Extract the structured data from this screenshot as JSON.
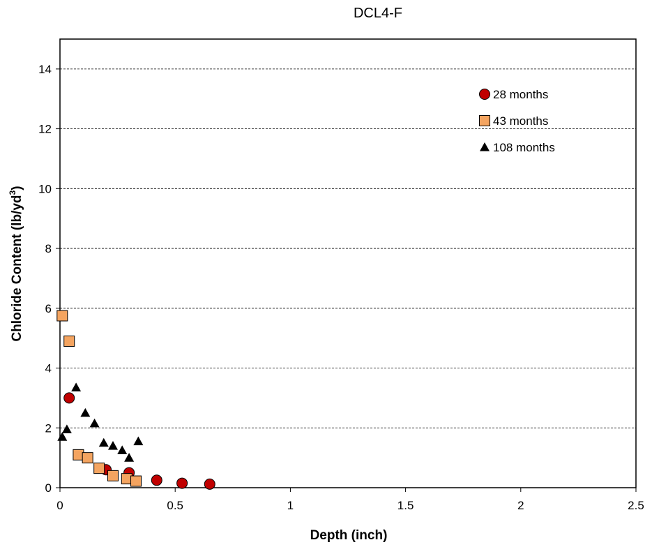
{
  "chart_data": {
    "type": "scatter",
    "title": "DCL4-F",
    "xlabel": "Depth (inch)",
    "ylabel_main": "Chloride Content (lb/yd",
    "ylabel_sup": "3",
    "ylabel_end": ")",
    "xlim": [
      0,
      2.5
    ],
    "ylim": [
      0,
      15
    ],
    "x_ticks": [
      "0",
      "0.5",
      "1",
      "1.5",
      "2",
      "2.5"
    ],
    "y_ticks": [
      "0",
      "2",
      "4",
      "6",
      "8",
      "10",
      "12",
      "14"
    ],
    "grid": "horizontal dashed",
    "legend_position": "top-right",
    "series": [
      {
        "name": "28 months",
        "marker": "circle",
        "color": "#c00000",
        "x": [
          0.04,
          0.2,
          0.3,
          0.42,
          0.53,
          0.65
        ],
        "y": [
          3.0,
          0.6,
          0.5,
          0.25,
          0.15,
          0.12
        ]
      },
      {
        "name": "43 months",
        "marker": "square",
        "color": "#f4a460",
        "x": [
          0.01,
          0.04,
          0.08,
          0.12,
          0.17,
          0.23,
          0.29,
          0.33
        ],
        "y": [
          5.75,
          4.9,
          1.1,
          1.0,
          0.65,
          0.4,
          0.3,
          0.22
        ]
      },
      {
        "name": "108 months",
        "marker": "triangle",
        "color": "#000000",
        "x": [
          0.01,
          0.03,
          0.07,
          0.11,
          0.15,
          0.19,
          0.23,
          0.27,
          0.3,
          0.34
        ],
        "y": [
          1.7,
          1.95,
          3.35,
          2.5,
          2.15,
          1.5,
          1.4,
          1.25,
          1.0,
          1.55
        ]
      }
    ]
  }
}
